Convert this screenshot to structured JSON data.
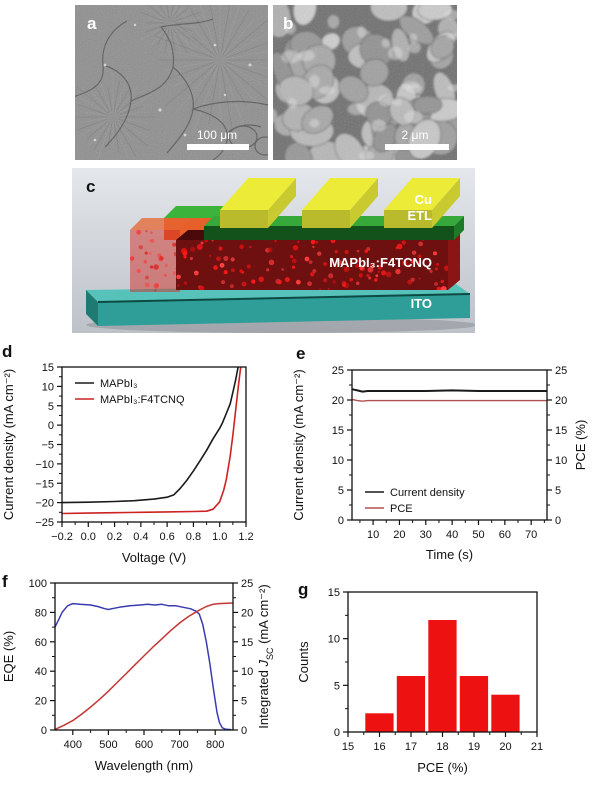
{
  "panels": {
    "a": "a",
    "b": "b",
    "c": "c",
    "d": "d",
    "e": "e",
    "f": "f",
    "g": "g"
  },
  "panel_a": {
    "scale_bar_text": "100 μm"
  },
  "panel_b": {
    "scale_bar_text": "2 μm"
  },
  "panel_c": {
    "label_cu": "Cu",
    "label_etl": "ETL",
    "label_absorber": "MAPbI₃:F4TCNQ",
    "label_ito": "ITO",
    "colors": {
      "cu": "#ecec38",
      "etl_front": "#14521c",
      "etl_top": "#36a93a",
      "absorber": "#6e0f10",
      "absorber_dots": "#ff1a1a",
      "ito": "#2f9e98"
    }
  },
  "chart_data": [
    {
      "id": "jv",
      "type": "line",
      "xlabel": "Voltage (V)",
      "ylabel": "Current density (mA cm⁻²)",
      "xlim": [
        -0.2,
        1.2
      ],
      "xticks": [
        -0.2,
        0.0,
        0.2,
        0.4,
        0.6,
        0.8,
        1.0,
        1.2
      ],
      "xtick_labels": [
        "−0.2",
        "0.0",
        "0.2",
        "0.4",
        "0.6",
        "0.8",
        "1.0",
        "1.2"
      ],
      "xminor": 0.1,
      "ylim": [
        -25,
        15
      ],
      "yticks": [
        -25,
        -20,
        -15,
        -10,
        -5,
        0,
        5,
        10,
        15
      ],
      "ytick_labels": [
        "−25",
        "−20",
        "−15",
        "−10",
        "−5",
        "0",
        "5",
        "10",
        "15"
      ],
      "yminor": 2.5,
      "legend_position": "top-left",
      "legend": [
        {
          "label": "MAPbI₃",
          "color": "#1a1a1a"
        },
        {
          "label": "MAPbI₃:F4TCNQ",
          "color": "#cc2222"
        }
      ],
      "series": [
        {
          "name": "MAPbI3",
          "color": "#1a1a1a",
          "width": 1.6,
          "points": [
            [
              -0.2,
              -20.0
            ],
            [
              0.0,
              -19.9
            ],
            [
              0.2,
              -19.7
            ],
            [
              0.35,
              -19.5
            ],
            [
              0.5,
              -19.1
            ],
            [
              0.6,
              -18.6
            ],
            [
              0.65,
              -18.0
            ],
            [
              0.7,
              -16.3
            ],
            [
              0.75,
              -14.2
            ],
            [
              0.8,
              -11.8
            ],
            [
              0.85,
              -9.2
            ],
            [
              0.9,
              -6.5
            ],
            [
              0.95,
              -3.5
            ],
            [
              1.0,
              -0.8
            ],
            [
              1.02,
              0.5
            ],
            [
              1.05,
              3.0
            ],
            [
              1.08,
              5.5
            ],
            [
              1.1,
              8.5
            ],
            [
              1.12,
              11.5
            ],
            [
              1.14,
              15.0
            ]
          ]
        },
        {
          "name": "MAPbI3:F4TCNQ",
          "color": "#cc2222",
          "width": 1.6,
          "points": [
            [
              -0.2,
              -22.8
            ],
            [
              0.0,
              -22.7
            ],
            [
              0.2,
              -22.6
            ],
            [
              0.4,
              -22.5
            ],
            [
              0.6,
              -22.4
            ],
            [
              0.8,
              -22.3
            ],
            [
              0.9,
              -22.2
            ],
            [
              0.95,
              -21.7
            ],
            [
              1.0,
              -19.8
            ],
            [
              1.03,
              -16.8
            ],
            [
              1.05,
              -14.0
            ],
            [
              1.08,
              -8.0
            ],
            [
              1.1,
              -2.5
            ],
            [
              1.12,
              3.5
            ],
            [
              1.14,
              9.5
            ],
            [
              1.16,
              15.0
            ]
          ]
        }
      ]
    },
    {
      "id": "stability",
      "type": "line",
      "xlabel": "Time (s)",
      "ylabel": "Current density (mA cm⁻²)",
      "ylabel_right": "PCE (%)",
      "xlim": [
        2,
        76
      ],
      "xticks": [
        10,
        20,
        30,
        40,
        50,
        60,
        70
      ],
      "xtick_labels": [
        "10",
        "20",
        "30",
        "40",
        "50",
        "60",
        "70"
      ],
      "xminor": 5,
      "ylim": [
        0,
        25
      ],
      "yticks": [
        0,
        5,
        10,
        15,
        20,
        25
      ],
      "ytick_labels": [
        "0",
        "5",
        "10",
        "15",
        "20",
        "25"
      ],
      "yminor": 2.5,
      "y2lim": [
        0,
        25
      ],
      "y2ticks": [
        0,
        5,
        10,
        15,
        20,
        25
      ],
      "y2tick_labels": [
        "0",
        "5",
        "10",
        "15",
        "20",
        "25"
      ],
      "y2minor": 2.5,
      "legend_position": "bottom-left",
      "legend": [
        {
          "label": "Current density",
          "color": "#1a1a1a"
        },
        {
          "label": "PCE",
          "color": "#b05050"
        }
      ],
      "series": [
        {
          "name": "Current density",
          "color": "#1a1a1a",
          "width": 2.0,
          "points": [
            [
              2,
              21.8
            ],
            [
              4,
              21.6
            ],
            [
              6,
              21.4
            ],
            [
              8,
              21.5
            ],
            [
              12,
              21.5
            ],
            [
              20,
              21.5
            ],
            [
              30,
              21.5
            ],
            [
              40,
              21.6
            ],
            [
              50,
              21.5
            ],
            [
              60,
              21.5
            ],
            [
              70,
              21.5
            ],
            [
              76,
              21.5
            ]
          ]
        },
        {
          "name": "PCE",
          "color": "#b05050",
          "width": 1.4,
          "axis": "y2",
          "points": [
            [
              2,
              20.1
            ],
            [
              4,
              19.9
            ],
            [
              6,
              19.8
            ],
            [
              8,
              19.9
            ],
            [
              12,
              19.9
            ],
            [
              20,
              19.9
            ],
            [
              30,
              19.9
            ],
            [
              40,
              19.9
            ],
            [
              50,
              19.9
            ],
            [
              60,
              19.9
            ],
            [
              70,
              19.9
            ],
            [
              76,
              19.9
            ]
          ]
        }
      ]
    },
    {
      "id": "eqe",
      "type": "line",
      "xlabel": "Wavelength (nm)",
      "ylabel": "EQE (%)",
      "ylabel_right_segments": [
        {
          "t": "Integrated "
        },
        {
          "t": "J",
          "italic": true
        },
        {
          "t": "SC",
          "sub": true
        },
        {
          "t": " (mA cm⁻²)"
        }
      ],
      "xlim": [
        350,
        850
      ],
      "xticks": [
        400,
        500,
        600,
        700,
        800
      ],
      "xtick_labels": [
        "400",
        "500",
        "600",
        "700",
        "800"
      ],
      "xminor": 50,
      "ylim": [
        0,
        100
      ],
      "yticks": [
        0,
        20,
        40,
        60,
        80,
        100
      ],
      "ytick_labels": [
        "0",
        "20",
        "40",
        "60",
        "80",
        "100"
      ],
      "yminor": 10,
      "y2lim": [
        0,
        25
      ],
      "y2ticks": [
        0,
        5,
        10,
        15,
        20,
        25
      ],
      "y2tick_labels": [
        "0",
        "5",
        "10",
        "15",
        "20",
        "25"
      ],
      "y2minor": 2.5,
      "series": [
        {
          "name": "EQE",
          "color": "#3b3bb0",
          "width": 1.5,
          "points": [
            [
              350,
              70
            ],
            [
              360,
              75
            ],
            [
              370,
              80
            ],
            [
              385,
              84.5
            ],
            [
              400,
              86
            ],
            [
              420,
              85.5
            ],
            [
              450,
              85
            ],
            [
              470,
              84
            ],
            [
              490,
              82.5
            ],
            [
              500,
              82
            ],
            [
              510,
              82.5
            ],
            [
              530,
              83.5
            ],
            [
              560,
              84.5
            ],
            [
              590,
              85
            ],
            [
              610,
              85.5
            ],
            [
              630,
              85
            ],
            [
              650,
              85.5
            ],
            [
              670,
              84.5
            ],
            [
              690,
              84.5
            ],
            [
              710,
              83.5
            ],
            [
              730,
              82.5
            ],
            [
              745,
              81
            ],
            [
              755,
              79
            ],
            [
              765,
              72
            ],
            [
              775,
              60
            ],
            [
              785,
              45
            ],
            [
              795,
              28
            ],
            [
              805,
              12
            ],
            [
              812,
              5
            ],
            [
              820,
              1.5
            ],
            [
              830,
              0.5
            ],
            [
              845,
              0.3
            ]
          ]
        },
        {
          "name": "Integrated Jsc",
          "color": "#c43535",
          "width": 1.5,
          "axis": "y2",
          "points": [
            [
              350,
              0.1
            ],
            [
              375,
              0.8
            ],
            [
              400,
              1.6
            ],
            [
              425,
              2.7
            ],
            [
              450,
              3.9
            ],
            [
              475,
              5.2
            ],
            [
              500,
              6.6
            ],
            [
              525,
              8.1
            ],
            [
              550,
              9.6
            ],
            [
              575,
              11.1
            ],
            [
              600,
              12.6
            ],
            [
              625,
              14.1
            ],
            [
              650,
              15.5
            ],
            [
              675,
              16.9
            ],
            [
              700,
              18.2
            ],
            [
              725,
              19.3
            ],
            [
              750,
              20.2
            ],
            [
              775,
              21.0
            ],
            [
              795,
              21.4
            ],
            [
              810,
              21.5
            ],
            [
              850,
              21.6
            ]
          ]
        }
      ]
    },
    {
      "id": "histogram",
      "type": "bar",
      "xlabel": "PCE (%)",
      "ylabel": "Counts",
      "xlim": [
        15,
        21
      ],
      "xticks": [
        15,
        16,
        17,
        18,
        19,
        20,
        21
      ],
      "xtick_labels": [
        "15",
        "16",
        "17",
        "18",
        "19",
        "20",
        "21"
      ],
      "xminor": 0.5,
      "ylim": [
        0,
        15
      ],
      "yticks": [
        0,
        5,
        10,
        15
      ],
      "ytick_labels": [
        "0",
        "5",
        "10",
        "15"
      ],
      "yminor": 2.5,
      "bar_color": "#ee1111",
      "bars": {
        "centers": [
          16,
          17,
          18,
          19,
          20
        ],
        "values": [
          2,
          6,
          12,
          6,
          4
        ],
        "width": 0.9
      }
    }
  ]
}
